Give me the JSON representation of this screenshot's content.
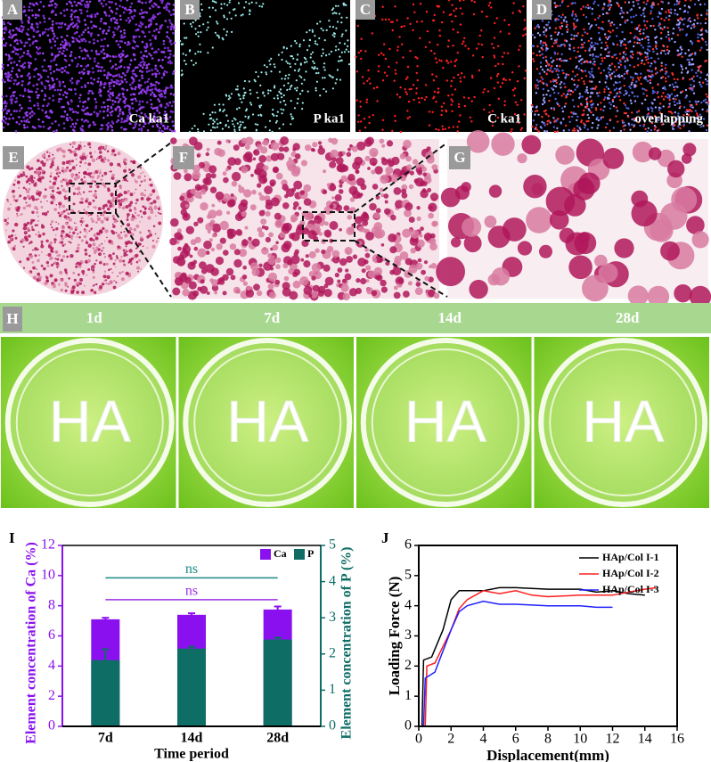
{
  "panels": {
    "a": {
      "label": "A",
      "caption": "Ca ka1"
    },
    "b": {
      "label": "B",
      "caption": "P ka1"
    },
    "c": {
      "label": "C",
      "caption": "C ka1"
    },
    "d": {
      "label": "D",
      "caption": "overlapping"
    },
    "e": {
      "label": "E"
    },
    "f": {
      "label": "F"
    },
    "g": {
      "label": "G"
    },
    "h": {
      "label": "H",
      "days": [
        "1d",
        "7d",
        "14d",
        "28d"
      ],
      "dish_text": "HA"
    }
  },
  "chart_data": [
    {
      "type": "bar",
      "panel_label": "I",
      "xlabel": "Time period",
      "ylabel": "Element concentration of Ca (%)",
      "y2label": "Element concentration of P (%)",
      "categories": [
        "7d",
        "14d",
        "28d"
      ],
      "ylim": [
        0,
        12
      ],
      "yticks": [
        0,
        2,
        4,
        6,
        8,
        10,
        12
      ],
      "y2lim": [
        0,
        5
      ],
      "y2ticks": [
        0,
        1,
        2,
        3,
        4,
        5
      ],
      "legend": "upper right",
      "series": [
        {
          "name": "Ca",
          "color": "#8a10f0",
          "values": [
            7.1,
            7.4,
            7.75
          ],
          "errors": [
            0.1,
            0.1,
            0.2
          ]
        },
        {
          "name": "P",
          "color": "#0e6e66",
          "axis": "y2",
          "values": [
            1.83,
            2.15,
            2.4
          ],
          "errors": [
            0.3,
            0.05,
            0.05
          ]
        }
      ],
      "annotations": [
        {
          "text": "ns",
          "y": 9.85,
          "color": "#1a8a84"
        },
        {
          "text": "ns",
          "y": 8.4,
          "color": "#9a30e0"
        }
      ]
    },
    {
      "type": "line",
      "panel_label": "J",
      "xlabel": "Displacement(mm)",
      "ylabel": "Loading Force (N)",
      "xlim": [
        0,
        16
      ],
      "xticks": [
        0,
        2,
        4,
        6,
        8,
        10,
        12,
        14,
        16
      ],
      "ylim": [
        0,
        6
      ],
      "yticks": [
        0,
        1,
        2,
        3,
        4,
        5,
        6
      ],
      "legend": "upper right",
      "series": [
        {
          "name": "HAp/Col I-1",
          "color": "#000000",
          "x": [
            0.2,
            0.3,
            0.8,
            1.5,
            2,
            2.5,
            3,
            4,
            5,
            6,
            8,
            10,
            11,
            12,
            13,
            14
          ],
          "values": [
            0,
            2.2,
            2.3,
            3.2,
            4.2,
            4.5,
            4.5,
            4.5,
            4.6,
            4.6,
            4.55,
            4.55,
            4.45,
            4.5,
            4.4,
            4.35
          ]
        },
        {
          "name": "HAp/Col I-2",
          "color": "#ff2020",
          "x": [
            0.4,
            0.5,
            1,
            2,
            2.5,
            3,
            4,
            5,
            6,
            7,
            8,
            10,
            12,
            13,
            14,
            14.7
          ],
          "values": [
            0,
            2.0,
            2.1,
            3.2,
            3.9,
            4.2,
            4.5,
            4.4,
            4.5,
            4.35,
            4.3,
            4.35,
            4.35,
            4.45,
            4.55,
            4.6
          ]
        },
        {
          "name": "HAp/Col I-3",
          "color": "#2020ff",
          "x": [
            0.3,
            0.4,
            1,
            2,
            2.5,
            3,
            4,
            5,
            6,
            8,
            10,
            11,
            12
          ],
          "values": [
            0,
            1.6,
            1.8,
            3.2,
            3.8,
            4.0,
            4.15,
            4.05,
            4.05,
            4.0,
            4.0,
            3.95,
            3.95
          ]
        }
      ]
    }
  ]
}
